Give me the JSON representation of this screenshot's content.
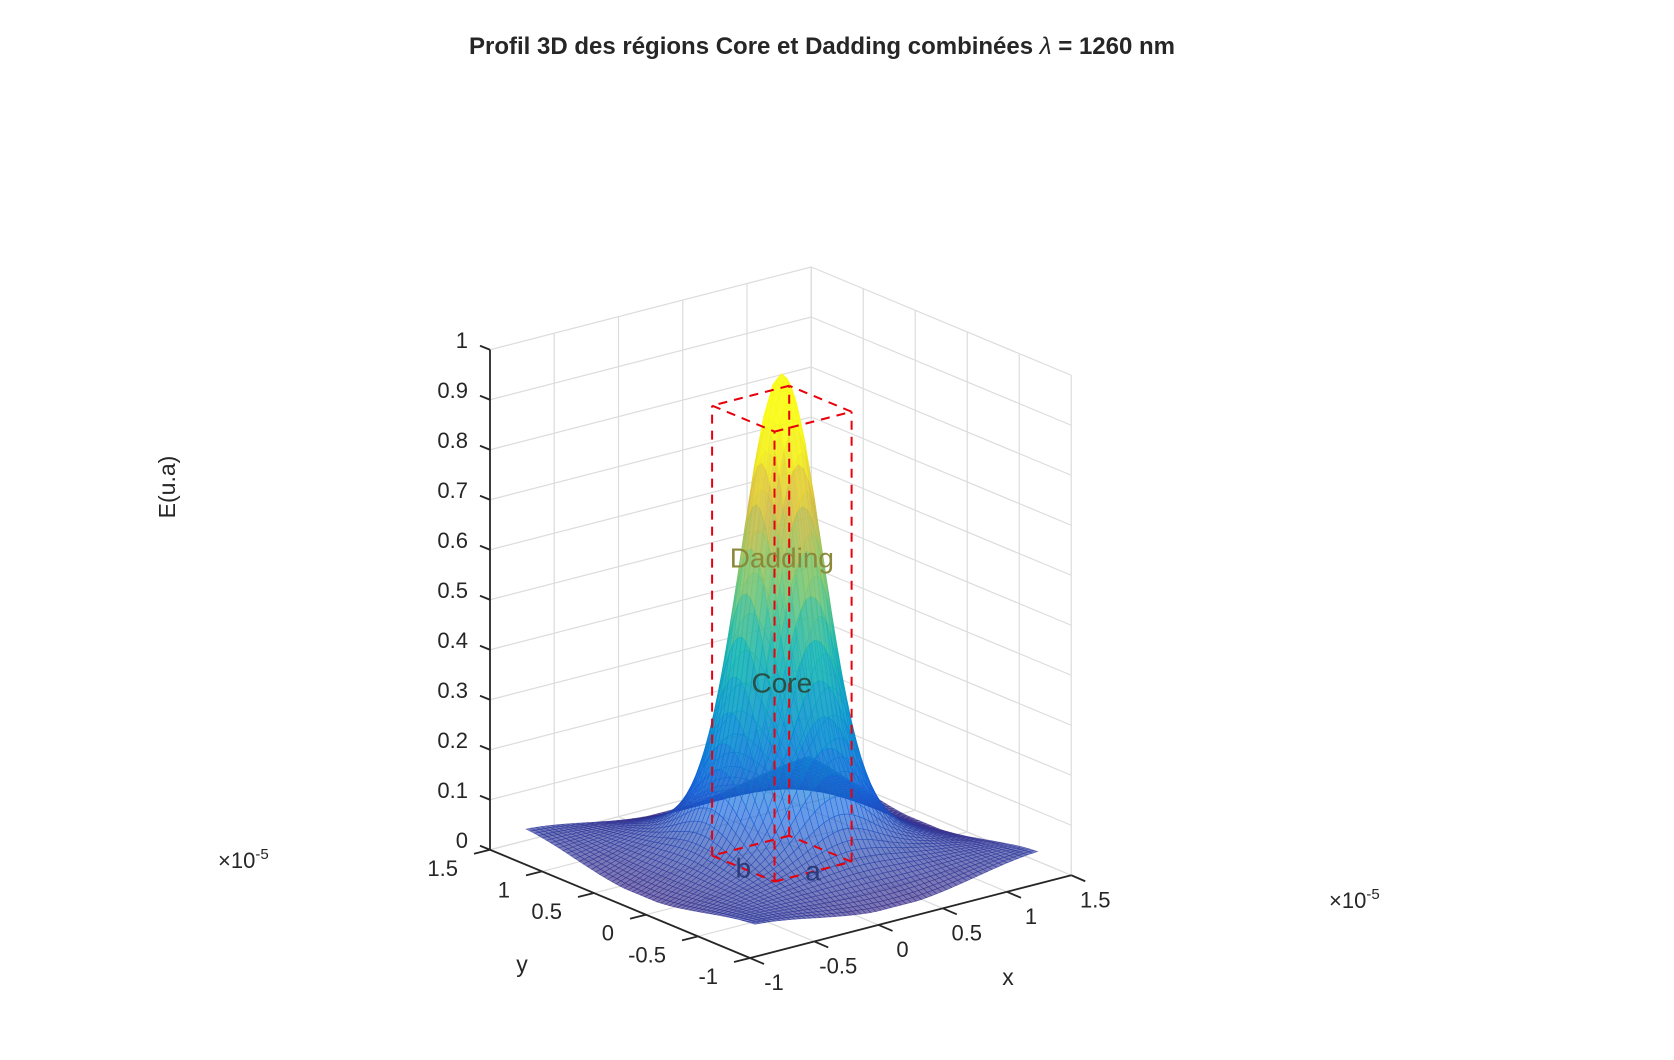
{
  "chart_data": {
    "type": "surface",
    "title_parts": {
      "before": "Profil 3D des régions Core et Dadding combinées ",
      "symbol": "λ",
      "after": " = 1260 nm"
    },
    "xlabel": "x",
    "ylabel": "y",
    "zlabel": "E(u.a)",
    "x_multiplier": "×10",
    "y_multiplier": "×10",
    "multiplier_exponent": "-5",
    "xlim": [
      -1,
      1.5
    ],
    "ylim": [
      -1,
      1.5
    ],
    "zlim": [
      0,
      1
    ],
    "x_ticks": [
      -1,
      -0.5,
      0,
      0.5,
      1,
      1.5
    ],
    "y_ticks": [
      -1,
      -0.5,
      0,
      0.5,
      1,
      1.5
    ],
    "z_ticks": [
      0,
      0.1,
      0.2,
      0.3,
      0.4,
      0.5,
      0.6,
      0.7,
      0.8,
      0.9,
      1
    ],
    "x_tick_labels": [
      "-1",
      "-0.5",
      "0",
      "0.5",
      "1",
      "1.5"
    ],
    "y_tick_labels": [
      "-1",
      "-0.5",
      "0",
      "0.5",
      "1",
      "1.5"
    ],
    "z_tick_labels": [
      "0",
      "0.1",
      "0.2",
      "0.3",
      "0.4",
      "0.5",
      "0.6",
      "0.7",
      "0.8",
      "0.9",
      "1"
    ],
    "grid": true,
    "surface": {
      "domain_x": [
        -0.8,
        1.4
      ],
      "domain_y": [
        -0.8,
        1.4
      ],
      "peak_center": [
        0.3,
        0.3
      ],
      "peak_value": 0.85,
      "colormap": "parula",
      "opacity": 0.65
    },
    "region_box": {
      "x": [
        0,
        0.6
      ],
      "y": [
        0,
        0.6
      ],
      "z": [
        0,
        0.9
      ],
      "color": "#e8000b",
      "style": "dashed"
    },
    "annotations": [
      {
        "text": "Dadding",
        "x": 0.3,
        "y": 0.3,
        "z": 0.6
      },
      {
        "text": "Core",
        "x": 0.3,
        "y": 0.3,
        "z": 0.35
      },
      {
        "text": "a",
        "x": 0.3,
        "y": 0,
        "z": 0
      },
      {
        "text": "b",
        "x": 0,
        "y": 0.3,
        "z": 0
      }
    ]
  }
}
